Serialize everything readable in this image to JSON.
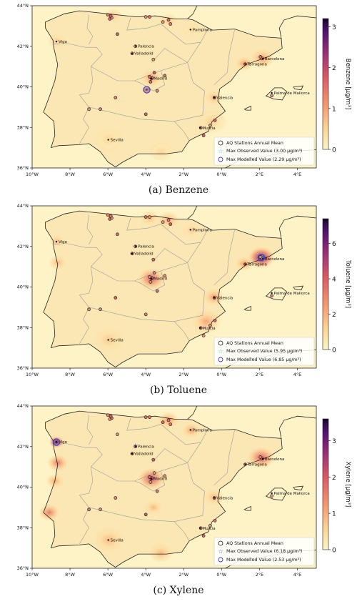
{
  "axes": {
    "x_ticks": [
      "10°W",
      "8°W",
      "6°W",
      "4°W",
      "2°W",
      "0°W",
      "2°E",
      "4°E"
    ],
    "y_ticks": [
      "44°N",
      "42°N",
      "40°N",
      "38°N",
      "36°N"
    ]
  },
  "city_labels": [
    "Pamplona",
    "Vigo",
    "Palencia",
    "Valladolid",
    "Barcelona",
    "Tarragona",
    "Madrid",
    "Valencia",
    "Palma de Mallorca",
    "Murcia",
    "Sevilla"
  ],
  "legend": {
    "stations": "AQ Stations Annual Mean"
  },
  "panels": [
    {
      "caption": "(a) Benzene",
      "colorbar_label": "Benzene [µg/m³]",
      "colorbar_ticks": [
        "0",
        "1",
        "2",
        "3"
      ],
      "colorbar_max": 3.2,
      "legend_observed": "Max Observed Value (3.00 µg/m³)",
      "legend_modelled": "Max Modelled Value (2.29 µg/m³)",
      "colors": {
        "accent": "#4b1d8e"
      }
    },
    {
      "caption": "(b) Toluene",
      "colorbar_label": "Toluene [µg/m³]",
      "colorbar_ticks": [
        "0",
        "2",
        "4",
        "6"
      ],
      "colorbar_max": 7.4,
      "legend_observed": "Max Observed Value (5.95 µg/m³)",
      "legend_modelled": "Max Modelled Value (6.85 µg/m³)",
      "colors": {
        "accent": "#4b1d8e"
      }
    },
    {
      "caption": "(c) Xylene",
      "colorbar_label": "Xylene [µg/m³]",
      "colorbar_ticks": [
        "0",
        "1",
        "2",
        "3"
      ],
      "colorbar_max": 3.6,
      "legend_observed": "Max Observed Value (6.18 µg/m³)",
      "legend_modelled": "Max Modelled Value (2.53 µg/m³)",
      "colors": {
        "accent": "#4b1d8e"
      }
    }
  ]
}
